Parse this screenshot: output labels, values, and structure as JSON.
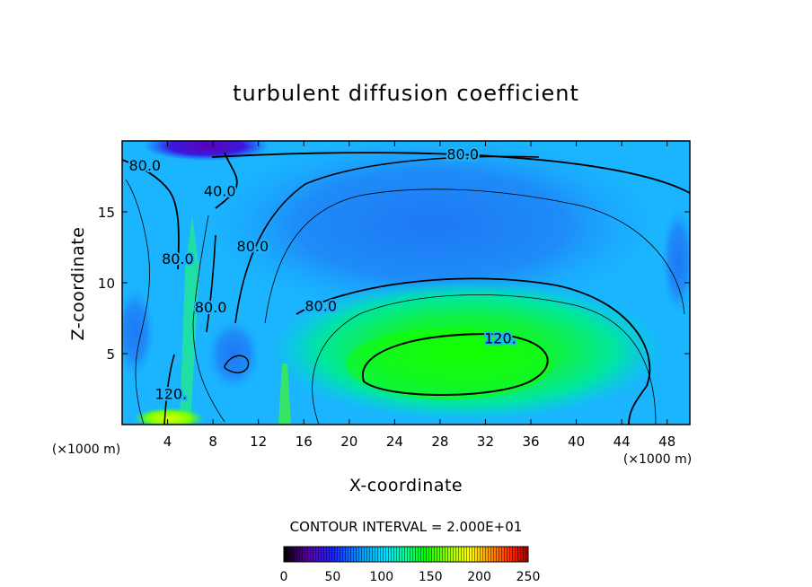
{
  "chart_data": {
    "type": "heatmap",
    "title": "turbulent diffusion coefficient",
    "xlabel": "X-coordinate",
    "ylabel": "Z-coordinate",
    "x_unit_label": "(×1000 m)",
    "xlim": [
      0,
      50
    ],
    "ylim": [
      0,
      20
    ],
    "x_ticks": [
      4,
      8,
      12,
      16,
      20,
      24,
      28,
      32,
      36,
      40,
      44,
      48
    ],
    "y_ticks": [
      5,
      10,
      15
    ],
    "contour_interval_text": "CONTOUR INTERVAL = 2.000E+01",
    "colorbar": {
      "range": [
        0,
        250
      ],
      "ticks": [
        0,
        50,
        100,
        150,
        200,
        250
      ],
      "colormap": [
        "#000000",
        "#6a00a8",
        "#1e1eff",
        "#00a0ff",
        "#00e0ff",
        "#00ff80",
        "#00ff00",
        "#a0ff00",
        "#ffff00",
        "#ff8000",
        "#ff0000",
        "#8b0000"
      ]
    },
    "contour_labels": [
      {
        "text": "80.0",
        "x": 2.0,
        "y": 18.2
      },
      {
        "text": "40.0",
        "x": 8.6,
        "y": 16.4
      },
      {
        "text": "80.0",
        "x": 30.0,
        "y": 19.0
      },
      {
        "text": "80.0",
        "x": 11.5,
        "y": 12.5
      },
      {
        "text": "80.0",
        "x": 4.9,
        "y": 11.6
      },
      {
        "text": "80.0",
        "x": 7.8,
        "y": 8.2
      },
      {
        "text": "80.0",
        "x": 17.5,
        "y": 8.3
      },
      {
        "text": "120.",
        "x": 33.3,
        "y": 6.0
      },
      {
        "text": "120.",
        "x": 4.3,
        "y": 2.1
      }
    ],
    "field_features": [
      {
        "kind": "max",
        "x": 28,
        "y": 4.0,
        "rx": 12,
        "ry": 2.7,
        "value": 135
      },
      {
        "kind": "min",
        "x": 25,
        "y": 13.5,
        "rx": 14,
        "ry": 5.0,
        "value": 55
      },
      {
        "kind": "min",
        "x": 7.5,
        "y": 19.2,
        "rx": 6,
        "ry": 1.0,
        "value": 12
      },
      {
        "kind": "max",
        "x": 5.6,
        "y": 0.6,
        "rx": 2.2,
        "ry": 0.8,
        "value": 165
      }
    ]
  }
}
